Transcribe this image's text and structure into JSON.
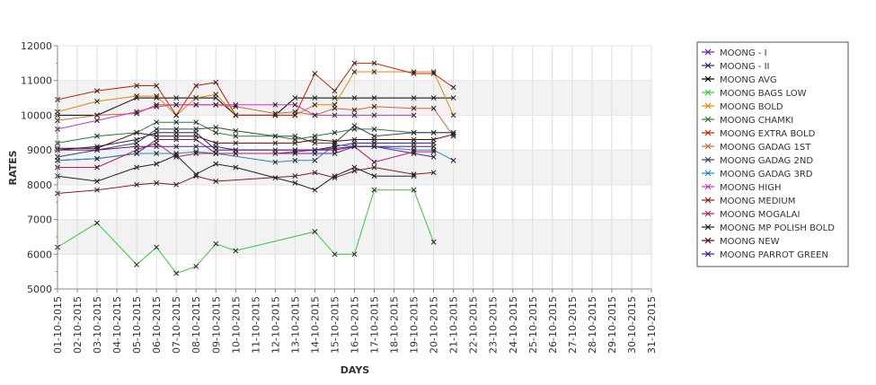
{
  "chart_data": {
    "type": "line",
    "xlabel": "DAYS",
    "ylabel": "RATES",
    "ylim": [
      5000,
      12000
    ],
    "y_ticks": [
      "5000",
      "6000",
      "7000",
      "8000",
      "9000",
      "10000",
      "11000",
      "12000"
    ],
    "categories": [
      "01-10-2015",
      "02-10-2015",
      "03-10-2015",
      "04-10-2015",
      "05-10-2015",
      "06-10-2015",
      "07-10-2015",
      "08-10-2015",
      "09-10-2015",
      "10-10-2015",
      "11-10-2015",
      "12-10-2015",
      "13-10-2015",
      "14-10-2015",
      "15-10-2015",
      "16-10-2015",
      "17-10-2015",
      "18-10-2015",
      "19-10-2015",
      "20-10-2015",
      "21-10-2015",
      "22-10-2015",
      "23-10-2015",
      "24-10-2015",
      "25-10-2015",
      "26-10-2015",
      "27-10-2015",
      "28-10-2015",
      "29-10-2015",
      "30-10-2015",
      "31-10-2015"
    ],
    "grid": "horizontal bands",
    "legend_position": "right",
    "series": [
      {
        "name": "MOONG - I",
        "color": "#6a1b9a",
        "points": [
          [
            0,
            8700
          ],
          [
            2,
            8750
          ],
          [
            4,
            8900
          ],
          [
            5,
            9300
          ],
          [
            6,
            9300
          ],
          [
            7,
            9300
          ],
          [
            8,
            8900
          ],
          [
            9,
            8900
          ],
          [
            12,
            8900
          ],
          [
            13,
            8900
          ],
          [
            14,
            8900
          ],
          [
            15,
            9100
          ],
          [
            16,
            9100
          ],
          [
            18,
            8900
          ],
          [
            19,
            8800
          ]
        ]
      },
      {
        "name": "MOONG - II",
        "color": "#1a237e",
        "points": [
          [
            0,
            9000
          ],
          [
            2,
            9100
          ],
          [
            4,
            9300
          ],
          [
            5,
            9500
          ],
          [
            6,
            9500
          ],
          [
            7,
            9500
          ],
          [
            8,
            9000
          ],
          [
            9,
            9000
          ],
          [
            12,
            9000
          ],
          [
            13,
            9000
          ],
          [
            14,
            9100
          ],
          [
            15,
            9200
          ],
          [
            16,
            9200
          ],
          [
            18,
            9200
          ],
          [
            19,
            9200
          ]
        ]
      },
      {
        "name": "MOONG AVG",
        "color": "#000000",
        "points": [
          [
            0,
            10000
          ],
          [
            2,
            10000
          ],
          [
            4,
            10500
          ],
          [
            5,
            10500
          ],
          [
            6,
            10500
          ],
          [
            7,
            10500
          ],
          [
            8,
            10500
          ],
          [
            9,
            10000
          ],
          [
            11,
            10000
          ],
          [
            12,
            10500
          ],
          [
            13,
            10500
          ],
          [
            14,
            10500
          ],
          [
            15,
            10500
          ],
          [
            16,
            10500
          ],
          [
            18,
            10500
          ],
          [
            19,
            10500
          ],
          [
            20,
            10500
          ]
        ]
      },
      {
        "name": "MOONG BAGS LOW",
        "color": "#33cc33",
        "points": [
          [
            0,
            6200
          ],
          [
            2,
            6900
          ],
          [
            4,
            5700
          ],
          [
            5,
            6200
          ],
          [
            6,
            5450
          ],
          [
            7,
            5650
          ],
          [
            8,
            6300
          ],
          [
            9,
            6100
          ],
          [
            13,
            6650
          ],
          [
            14,
            6000
          ],
          [
            15,
            6000
          ],
          [
            16,
            7850
          ],
          [
            18,
            7850
          ],
          [
            19,
            6350
          ]
        ]
      },
      {
        "name": "MOONG BOLD",
        "color": "#e08a00",
        "points": [
          [
            0,
            10100
          ],
          [
            2,
            10400
          ],
          [
            4,
            10550
          ],
          [
            5,
            10550
          ],
          [
            6,
            10000
          ],
          [
            7,
            10500
          ],
          [
            8,
            10600
          ],
          [
            9,
            10000
          ],
          [
            11,
            10000
          ],
          [
            12,
            10000
          ],
          [
            13,
            10300
          ],
          [
            14,
            10300
          ],
          [
            15,
            11250
          ],
          [
            16,
            11250
          ],
          [
            18,
            11250
          ],
          [
            19,
            11250
          ],
          [
            20,
            10000
          ]
        ]
      },
      {
        "name": "MOONG CHAMKI",
        "color": "#2e7d32",
        "points": [
          [
            0,
            9200
          ],
          [
            2,
            9400
          ],
          [
            4,
            9500
          ],
          [
            5,
            9800
          ],
          [
            6,
            9800
          ],
          [
            7,
            9800
          ],
          [
            8,
            9500
          ],
          [
            9,
            9400
          ],
          [
            11,
            9400
          ],
          [
            12,
            9300
          ],
          [
            13,
            9400
          ],
          [
            14,
            9500
          ],
          [
            15,
            9600
          ],
          [
            16,
            9600
          ],
          [
            18,
            9500
          ],
          [
            19,
            9500
          ],
          [
            20,
            9500
          ]
        ]
      },
      {
        "name": "MOONG EXTRA BOLD",
        "color": "#cc2200",
        "points": [
          [
            0,
            10450
          ],
          [
            2,
            10700
          ],
          [
            4,
            10850
          ],
          [
            5,
            10850
          ],
          [
            6,
            10000
          ],
          [
            7,
            10850
          ],
          [
            8,
            10950
          ],
          [
            9,
            10000
          ],
          [
            11,
            10000
          ],
          [
            12,
            10000
          ],
          [
            13,
            11200
          ],
          [
            14,
            10700
          ],
          [
            15,
            11500
          ],
          [
            16,
            11500
          ],
          [
            18,
            11200
          ],
          [
            19,
            11200
          ],
          [
            20,
            10800
          ]
        ]
      },
      {
        "name": "MOONG GADAG 1ST",
        "color": "#d4643c",
        "points": [
          [
            0,
            9850
          ],
          [
            2,
            10000
          ],
          [
            4,
            10050
          ],
          [
            5,
            10300
          ],
          [
            6,
            10300
          ],
          [
            7,
            10300
          ],
          [
            8,
            10300
          ],
          [
            9,
            10250
          ],
          [
            11,
            10050
          ],
          [
            12,
            10100
          ],
          [
            13,
            10000
          ],
          [
            14,
            10200
          ],
          [
            15,
            10150
          ],
          [
            16,
            10250
          ],
          [
            18,
            10200
          ],
          [
            19,
            10200
          ],
          [
            20,
            9400
          ]
        ]
      },
      {
        "name": "MOONG GADAG 2ND",
        "color": "#37474f",
        "points": [
          [
            0,
            8800
          ],
          [
            2,
            9000
          ],
          [
            4,
            9200
          ],
          [
            5,
            9600
          ],
          [
            6,
            9600
          ],
          [
            7,
            9600
          ],
          [
            8,
            9650
          ],
          [
            9,
            9550
          ],
          [
            11,
            9400
          ],
          [
            12,
            9400
          ],
          [
            13,
            9200
          ],
          [
            14,
            9200
          ],
          [
            15,
            9700
          ],
          [
            16,
            9400
          ],
          [
            18,
            9500
          ],
          [
            19,
            9500
          ],
          [
            20,
            9500
          ]
        ]
      },
      {
        "name": "MOONG GADAG 3RD",
        "color": "#1e88c8",
        "points": [
          [
            0,
            8700
          ],
          [
            2,
            8750
          ],
          [
            4,
            8900
          ],
          [
            5,
            8900
          ],
          [
            6,
            8900
          ],
          [
            7,
            8950
          ],
          [
            8,
            8900
          ],
          [
            11,
            8650
          ],
          [
            12,
            8700
          ],
          [
            13,
            8700
          ],
          [
            14,
            9150
          ],
          [
            15,
            9100
          ],
          [
            16,
            9100
          ],
          [
            18,
            9000
          ],
          [
            19,
            9000
          ],
          [
            20,
            8700
          ]
        ]
      },
      {
        "name": "MOONG HIGH",
        "color": "#cc33cc",
        "points": [
          [
            0,
            9600
          ],
          [
            2,
            9850
          ],
          [
            4,
            10100
          ],
          [
            5,
            10250
          ],
          [
            6,
            10300
          ],
          [
            7,
            10300
          ],
          [
            8,
            10300
          ],
          [
            9,
            10300
          ],
          [
            11,
            10300
          ],
          [
            12,
            10300
          ],
          [
            13,
            10000
          ],
          [
            14,
            10000
          ],
          [
            15,
            10000
          ],
          [
            16,
            10000
          ],
          [
            18,
            10000
          ]
        ]
      },
      {
        "name": "MOONG MEDIUM",
        "color": "#8b1a1a",
        "points": [
          [
            0,
            7750
          ],
          [
            2,
            7850
          ],
          [
            4,
            8000
          ],
          [
            5,
            8050
          ],
          [
            6,
            8000
          ],
          [
            7,
            8250
          ],
          [
            8,
            8100
          ],
          [
            12,
            8250
          ],
          [
            13,
            8350
          ],
          [
            14,
            8200
          ],
          [
            15,
            8400
          ],
          [
            16,
            8500
          ],
          [
            18,
            8300
          ],
          [
            19,
            8350
          ]
        ]
      },
      {
        "name": "MOONG MOGALAI",
        "color": "#c2185b",
        "points": [
          [
            0,
            8500
          ],
          [
            2,
            8500
          ],
          [
            4,
            9000
          ],
          [
            5,
            9200
          ],
          [
            6,
            8800
          ],
          [
            7,
            8900
          ],
          [
            8,
            8900
          ],
          [
            9,
            8900
          ],
          [
            11,
            8900
          ],
          [
            12,
            8950
          ],
          [
            13,
            9000
          ],
          [
            14,
            9050
          ],
          [
            15,
            9100
          ],
          [
            16,
            8650
          ],
          [
            18,
            8950
          ],
          [
            19,
            8950
          ]
        ]
      },
      {
        "name": "MOONG MP POLISH BOLD",
        "color": "#222222",
        "points": [
          [
            0,
            8250
          ],
          [
            2,
            8100
          ],
          [
            4,
            8500
          ],
          [
            5,
            8600
          ],
          [
            6,
            8850
          ],
          [
            7,
            8300
          ],
          [
            8,
            8600
          ],
          [
            9,
            8500
          ],
          [
            11,
            8200
          ],
          [
            12,
            8050
          ],
          [
            13,
            7850
          ],
          [
            14,
            8250
          ],
          [
            15,
            8500
          ],
          [
            16,
            8250
          ],
          [
            18,
            8250
          ]
        ]
      },
      {
        "name": "MOONG NEW",
        "color": "#660000",
        "points": [
          [
            0,
            9050
          ],
          [
            2,
            9050
          ],
          [
            4,
            9500
          ],
          [
            5,
            9400
          ],
          [
            6,
            9400
          ],
          [
            7,
            9400
          ],
          [
            8,
            9200
          ],
          [
            9,
            9200
          ],
          [
            11,
            9200
          ],
          [
            12,
            9200
          ],
          [
            13,
            9300
          ],
          [
            14,
            9250
          ],
          [
            15,
            9300
          ],
          [
            16,
            9300
          ],
          [
            18,
            9300
          ],
          [
            19,
            9300
          ],
          [
            20,
            9450
          ]
        ]
      },
      {
        "name": "MOONG PARROT GREEN",
        "color": "#4a148c",
        "points": [
          [
            0,
            9000
          ],
          [
            2,
            9000
          ],
          [
            4,
            9100
          ],
          [
            5,
            9100
          ],
          [
            6,
            9100
          ],
          [
            7,
            9100
          ],
          [
            8,
            9100
          ],
          [
            9,
            9000
          ],
          [
            11,
            9000
          ],
          [
            12,
            9000
          ],
          [
            13,
            9000
          ],
          [
            14,
            9000
          ],
          [
            15,
            9100
          ],
          [
            16,
            9100
          ],
          [
            18,
            9100
          ],
          [
            19,
            9100
          ]
        ]
      }
    ]
  }
}
